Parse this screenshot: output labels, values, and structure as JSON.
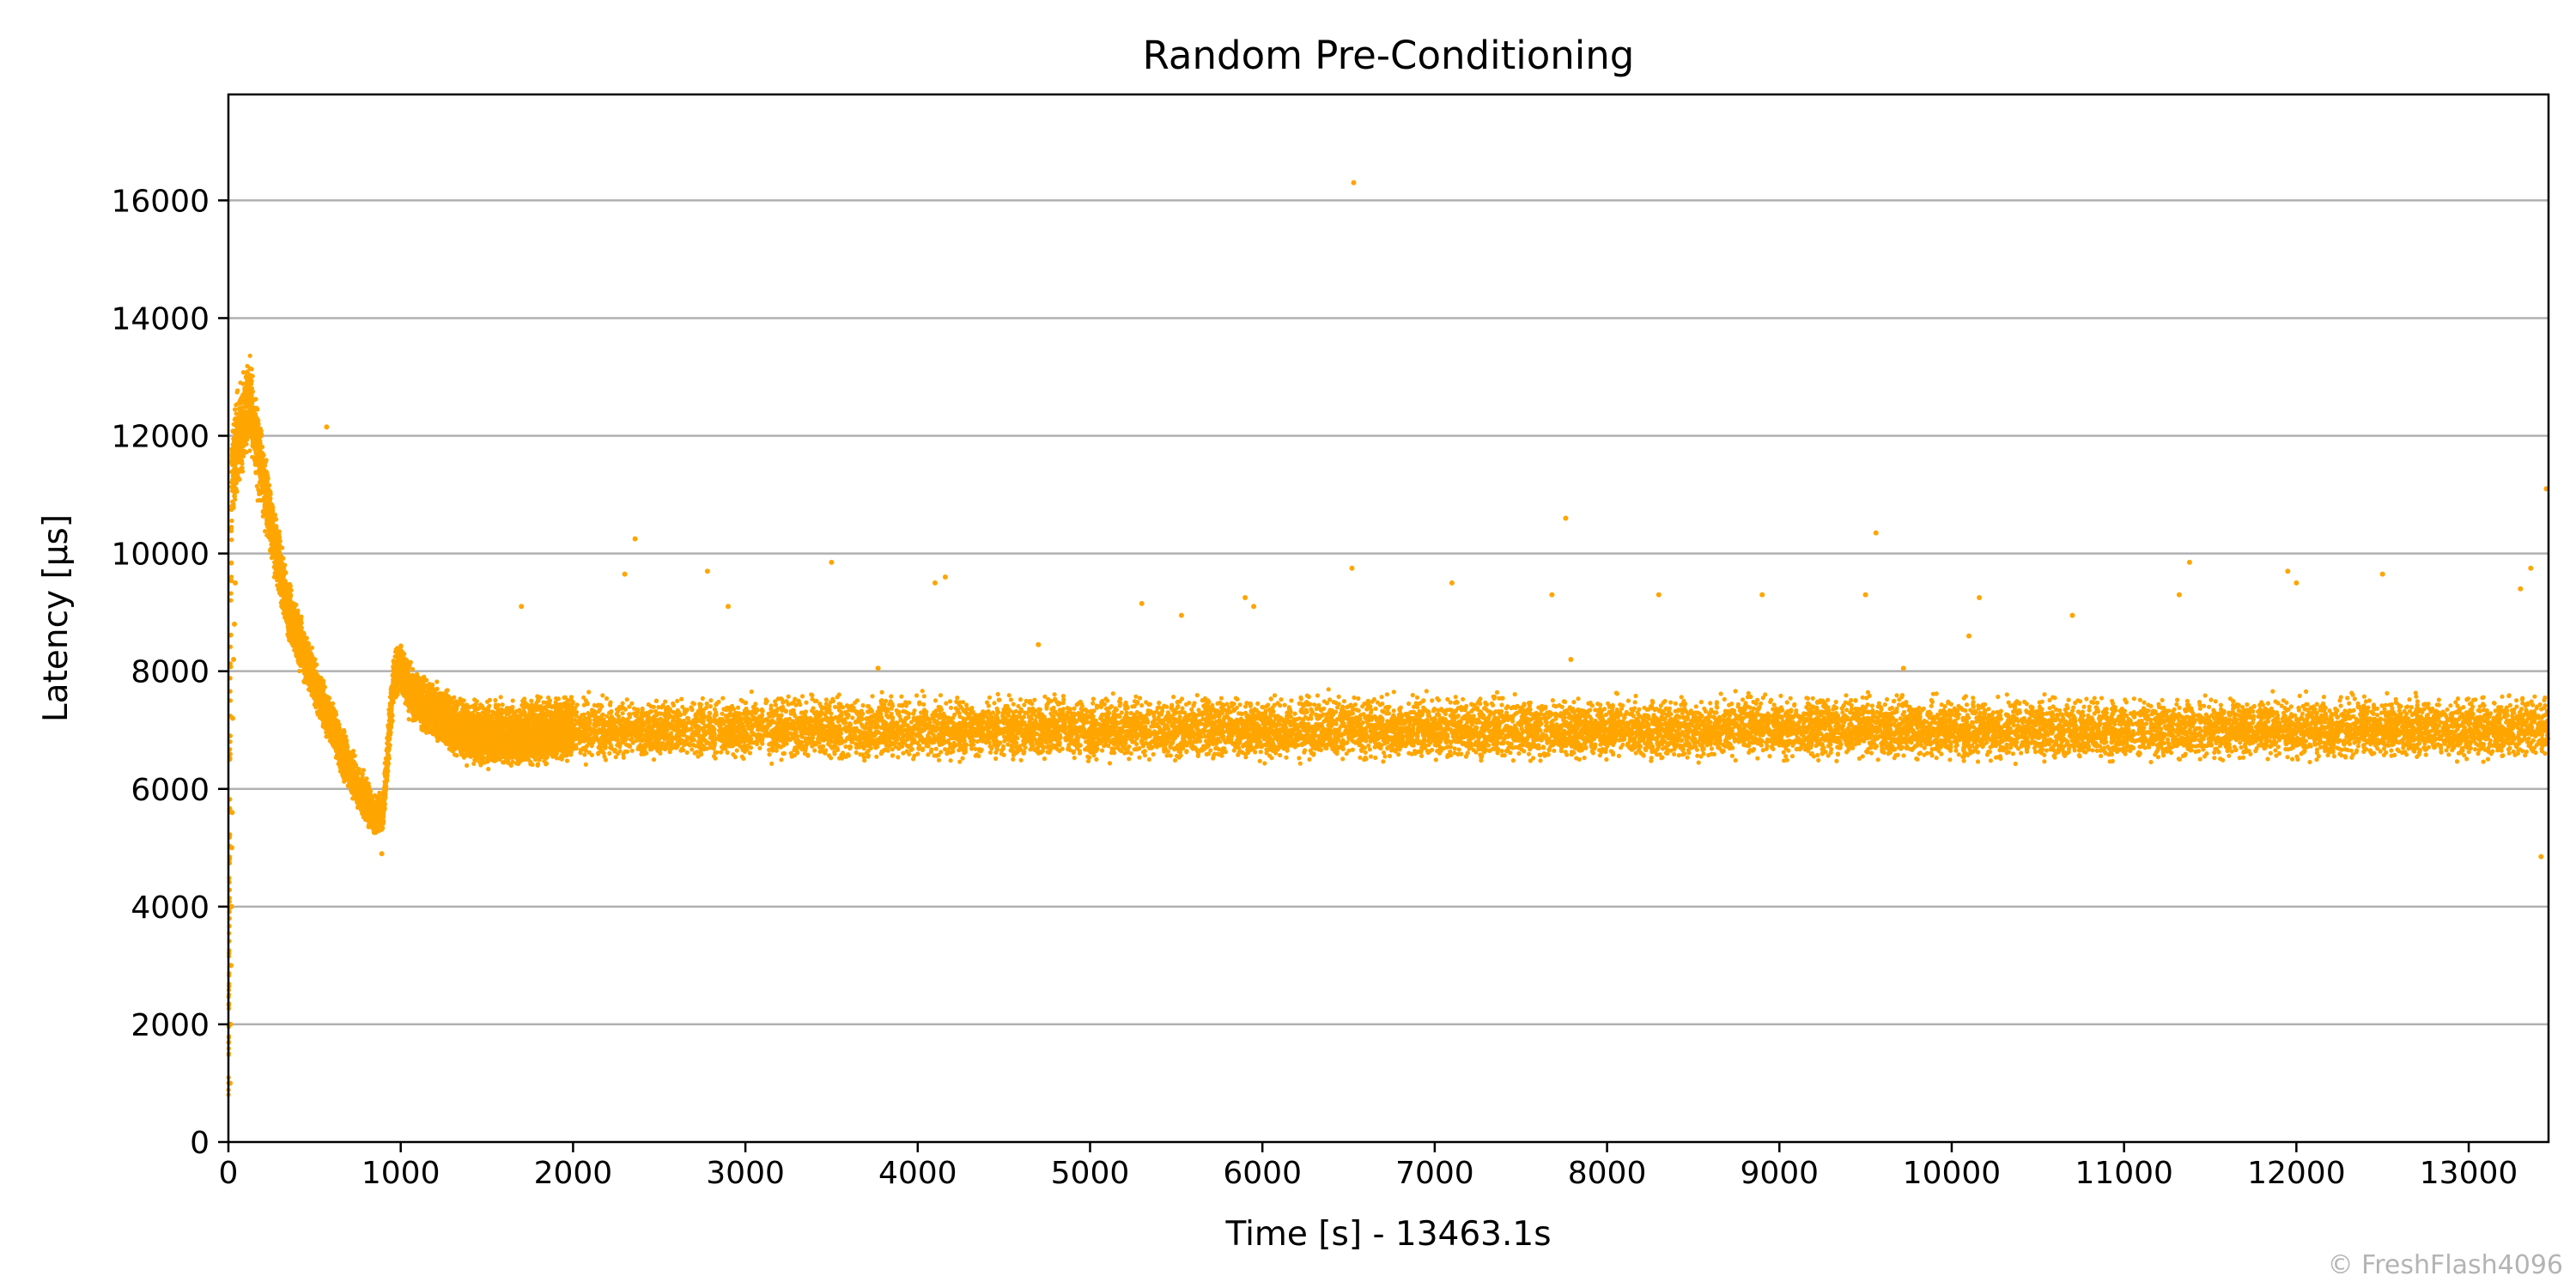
{
  "chart_data": {
    "type": "scatter",
    "title": "Random Pre-Conditioning",
    "xlabel": "Time [s] - 13463.1s",
    "ylabel": "Latency [µs]",
    "xlim": [
      0,
      13463.1
    ],
    "ylim": [
      0,
      17800
    ],
    "x_ticks": [
      0,
      1000,
      2000,
      3000,
      4000,
      5000,
      6000,
      7000,
      8000,
      9000,
      10000,
      11000,
      12000,
      13000
    ],
    "y_ticks": [
      0,
      2000,
      4000,
      6000,
      8000,
      10000,
      12000,
      14000,
      16000
    ],
    "grid": "horizontal",
    "legend": "none",
    "series": [
      {
        "color": "#ffa500",
        "marker": "dot",
        "band_profile": {
          "description": "dense latency band: median / low / high per time",
          "x": [
            0,
            20,
            50,
            100,
            130,
            170,
            250,
            350,
            450,
            550,
            650,
            750,
            850,
            900,
            930,
            960,
            1000,
            1050,
            1100,
            1200,
            1300,
            1400,
            1500,
            1600,
            1800,
            2000,
            13463
          ],
          "median": [
            600,
            11500,
            11800,
            12300,
            12600,
            11800,
            10500,
            9000,
            8200,
            7400,
            6700,
            6000,
            5500,
            5600,
            6800,
            7900,
            8000,
            7700,
            7500,
            7300,
            7000,
            6900,
            6850,
            6850,
            6900,
            7000,
            7000
          ],
          "low": [
            300,
            10300,
            10800,
            11500,
            11700,
            10900,
            9800,
            8500,
            7700,
            7000,
            6200,
            5600,
            5200,
            5300,
            6300,
            7400,
            7500,
            7200,
            7000,
            6800,
            6500,
            6400,
            6350,
            6350,
            6400,
            6450,
            6450
          ],
          "high": [
            3500,
            12200,
            12800,
            13300,
            13400,
            12500,
            11200,
            9600,
            8700,
            7900,
            7200,
            6500,
            6000,
            6100,
            7500,
            8400,
            8500,
            8200,
            8000,
            7900,
            7700,
            7600,
            7550,
            7550,
            7600,
            7650,
            7650
          ]
        },
        "outliers": {
          "x": [
            570,
            1700,
            2300,
            2360,
            2780,
            2900,
            3500,
            3770,
            4100,
            4160,
            4700,
            5300,
            5530,
            5900,
            5950,
            6520,
            6530,
            7100,
            7680,
            7760,
            7790,
            8300,
            8900,
            9500,
            9560,
            9720,
            10100,
            10160,
            10700,
            11320,
            11380,
            11950,
            12000,
            12500,
            13300,
            13360,
            13420,
            13450,
            10,
            12,
            15,
            18,
            20,
            22,
            25,
            30,
            35,
            40,
            890
          ],
          "y": [
            12150,
            9100,
            9650,
            10250,
            9700,
            9100,
            9850,
            8050,
            9500,
            9600,
            8450,
            9150,
            8950,
            9250,
            9100,
            9750,
            16300,
            9500,
            9300,
            10600,
            8200,
            9300,
            9300,
            9300,
            10350,
            8050,
            8600,
            9250,
            8950,
            9300,
            9850,
            9700,
            9500,
            9650,
            9400,
            9750,
            4850,
            11100,
            1000,
            2000,
            3000,
            4000,
            5000,
            5600,
            7200,
            8200,
            8800,
            9500,
            4900
          ]
        }
      }
    ]
  },
  "watermark": "© FreshFlash4096"
}
